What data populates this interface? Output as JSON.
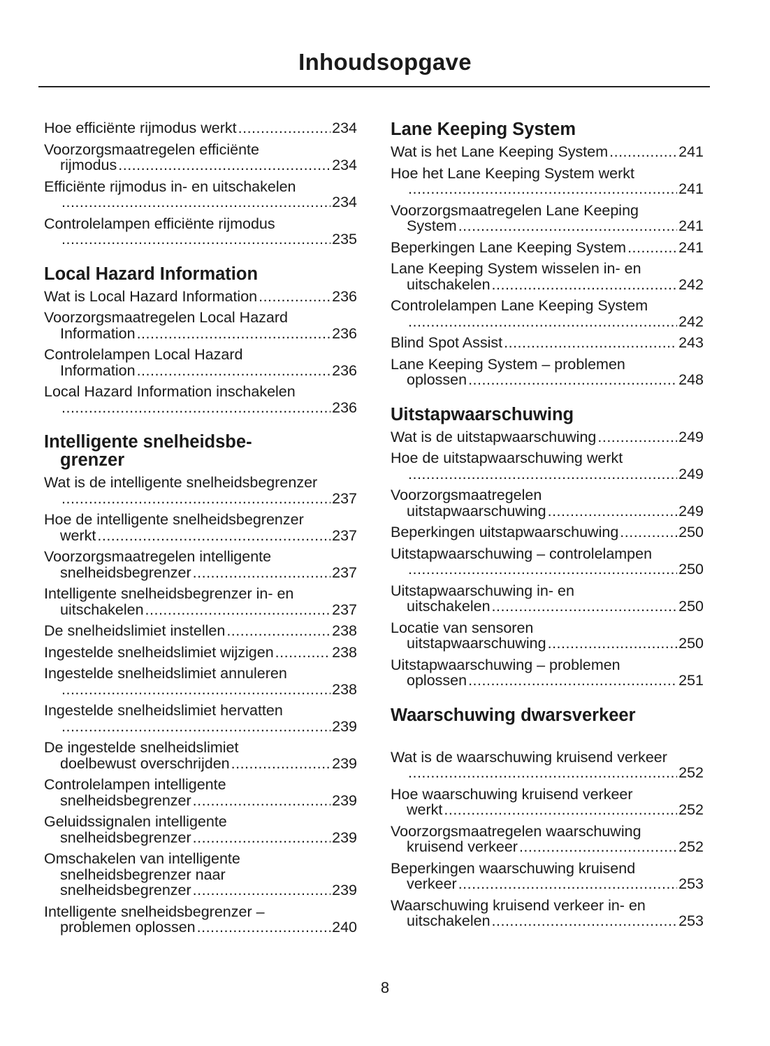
{
  "title": "Inhoudsopgave",
  "page_number": "8",
  "columns": [
    [
      {
        "type": "entry",
        "lines": [
          "Hoe efficiënte rijmodus werkt"
        ],
        "page": "234"
      },
      {
        "type": "entry",
        "lines": [
          "Voorzorgsmaatregelen efficiënte",
          "rijmodus"
        ],
        "page": "234"
      },
      {
        "type": "entry",
        "lines": [
          "Efficiënte rijmodus in- en uitschakelen",
          ""
        ],
        "page": "234"
      },
      {
        "type": "entry",
        "lines": [
          "Controlelampen efficiënte rijmodus",
          ""
        ],
        "page": "235"
      },
      {
        "type": "heading",
        "lines": [
          "Local Hazard Information"
        ]
      },
      {
        "type": "entry",
        "lines": [
          "Wat is Local Hazard Information"
        ],
        "page": "236"
      },
      {
        "type": "entry",
        "lines": [
          "Voorzorgsmaatregelen Local Hazard",
          "Information"
        ],
        "page": "236"
      },
      {
        "type": "entry",
        "lines": [
          "Controlelampen Local Hazard",
          "Information"
        ],
        "page": "236"
      },
      {
        "type": "entry",
        "lines": [
          "Local Hazard Information inschakelen",
          ""
        ],
        "page": "236"
      },
      {
        "type": "heading",
        "lines": [
          "Intelligente snelheidsbe-",
          "grenzer"
        ]
      },
      {
        "type": "entry",
        "lines": [
          "Wat is de intelligente snelheidsbegrenzer",
          ""
        ],
        "page": "237"
      },
      {
        "type": "entry",
        "lines": [
          "Hoe de intelligente snelheidsbegrenzer",
          "werkt"
        ],
        "page": "237"
      },
      {
        "type": "entry",
        "lines": [
          "Voorzorgsmaatregelen intelligente",
          "snelheidsbegrenzer"
        ],
        "page": "237"
      },
      {
        "type": "entry",
        "lines": [
          "Intelligente snelheidsbegrenzer in- en",
          "uitschakelen"
        ],
        "page": "237"
      },
      {
        "type": "entry",
        "lines": [
          "De snelheidslimiet instellen"
        ],
        "page": "238"
      },
      {
        "type": "entry",
        "lines": [
          "Ingestelde snelheidslimiet wijzigen"
        ],
        "page": "238"
      },
      {
        "type": "entry",
        "lines": [
          "Ingestelde snelheidslimiet annuleren",
          ""
        ],
        "page": "238"
      },
      {
        "type": "entry",
        "lines": [
          "Ingestelde snelheidslimiet hervatten",
          ""
        ],
        "page": "239"
      },
      {
        "type": "entry",
        "lines": [
          "De ingestelde snelheidslimiet",
          "doelbewust overschrijden"
        ],
        "page": "239"
      },
      {
        "type": "entry",
        "lines": [
          "Controlelampen intelligente",
          "snelheidsbegrenzer"
        ],
        "page": "239"
      },
      {
        "type": "entry",
        "lines": [
          "Geluidssignalen intelligente",
          "snelheidsbegrenzer"
        ],
        "page": "239"
      },
      {
        "type": "entry",
        "lines": [
          "Omschakelen van intelligente",
          "snelheidsbegrenzer naar",
          "snelheidsbegrenzer"
        ],
        "page": "239"
      },
      {
        "type": "entry",
        "lines": [
          "Intelligente snelheidsbegrenzer –",
          "problemen oplossen"
        ],
        "page": "240"
      }
    ],
    [
      {
        "type": "heading",
        "lines": [
          "Lane Keeping System"
        ]
      },
      {
        "type": "entry",
        "lines": [
          "Wat is het Lane Keeping System"
        ],
        "page": "241"
      },
      {
        "type": "entry",
        "lines": [
          "Hoe het Lane Keeping System werkt",
          ""
        ],
        "page": "241"
      },
      {
        "type": "entry",
        "lines": [
          "Voorzorgsmaatregelen Lane Keeping",
          "System"
        ],
        "page": "241"
      },
      {
        "type": "entry",
        "lines": [
          "Beperkingen Lane Keeping System"
        ],
        "page": "241"
      },
      {
        "type": "entry",
        "lines": [
          "Lane Keeping System wisselen in- en",
          "uitschakelen"
        ],
        "page": "242"
      },
      {
        "type": "entry",
        "lines": [
          "Controlelampen Lane Keeping System",
          ""
        ],
        "page": "242"
      },
      {
        "type": "entry",
        "lines": [
          "Blind Spot Assist"
        ],
        "page": "243"
      },
      {
        "type": "entry",
        "lines": [
          "Lane Keeping System – problemen",
          "oplossen"
        ],
        "page": "248"
      },
      {
        "type": "heading",
        "lines": [
          "Uitstapwaarschuwing"
        ]
      },
      {
        "type": "entry",
        "lines": [
          "Wat is de uitstapwaarschuwing"
        ],
        "page": "249"
      },
      {
        "type": "entry",
        "lines": [
          "Hoe de uitstapwaarschuwing werkt",
          ""
        ],
        "page": "249"
      },
      {
        "type": "entry",
        "lines": [
          "Voorzorgsmaatregelen",
          "uitstapwaarschuwing"
        ],
        "page": "249"
      },
      {
        "type": "entry",
        "lines": [
          "Beperkingen uitstapwaarschuwing"
        ],
        "page": "250"
      },
      {
        "type": "entry",
        "lines": [
          "Uitstapwaarschuwing – controlelampen",
          ""
        ],
        "page": "250"
      },
      {
        "type": "entry",
        "lines": [
          "Uitstapwaarschuwing in- en",
          "uitschakelen"
        ],
        "page": "250"
      },
      {
        "type": "entry",
        "lines": [
          "Locatie van sensoren",
          "uitstapwaarschuwing"
        ],
        "page": "250"
      },
      {
        "type": "entry",
        "lines": [
          "Uitstapwaarschuwing – problemen",
          "oplossen"
        ],
        "page": "251"
      },
      {
        "type": "heading",
        "extra": true,
        "lines": [
          "Waarschuwing dwarsverkeer"
        ]
      },
      {
        "type": "entry",
        "lines": [
          "Wat is de waarschuwing kruisend verkeer",
          ""
        ],
        "page": "252"
      },
      {
        "type": "entry",
        "lines": [
          "Hoe waarschuwing kruisend verkeer",
          "werkt"
        ],
        "page": "252"
      },
      {
        "type": "entry",
        "lines": [
          "Voorzorgsmaatregelen waarschuwing",
          "kruisend verkeer"
        ],
        "page": "252"
      },
      {
        "type": "entry",
        "lines": [
          "Beperkingen waarschuwing kruisend",
          "verkeer"
        ],
        "page": "253"
      },
      {
        "type": "entry",
        "lines": [
          "Waarschuwing kruisend verkeer in- en",
          "uitschakelen"
        ],
        "page": "253"
      }
    ]
  ]
}
